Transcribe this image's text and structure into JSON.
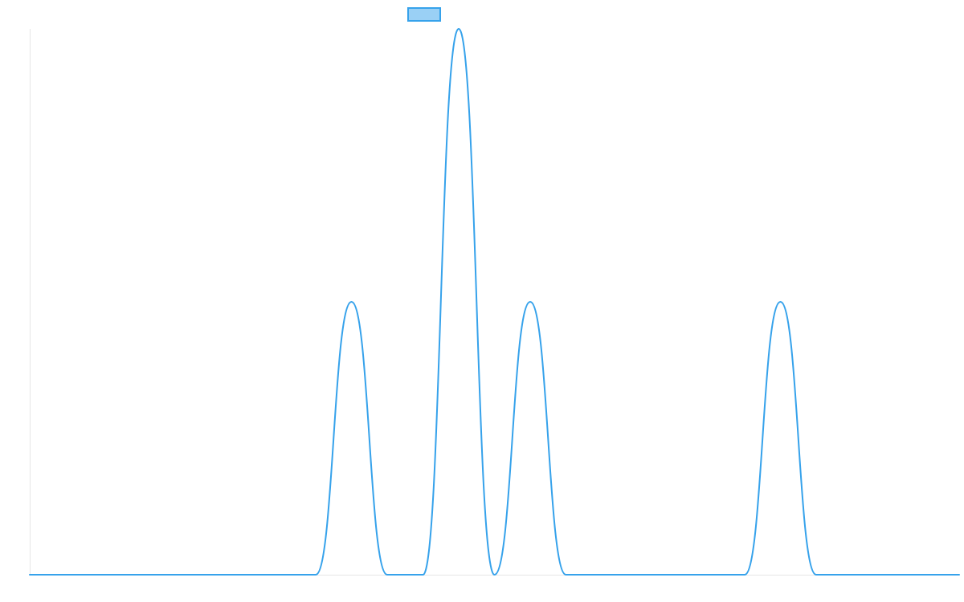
{
  "chart_data": {
    "type": "line",
    "title": "",
    "xlabel": "",
    "ylabel": "",
    "legend_position": "top-center",
    "grid": false,
    "x": [
      0,
      1,
      2,
      3,
      4,
      5,
      6,
      7,
      8,
      9,
      10,
      11,
      12,
      13,
      14,
      15,
      16,
      17,
      18,
      19,
      20,
      21,
      22,
      23,
      24,
      25,
      26
    ],
    "xlim": [
      0,
      26
    ],
    "ylim": [
      0,
      2
    ],
    "series": [
      {
        "values": [
          0,
          0,
          0,
          0,
          0,
          0,
          0,
          0,
          0,
          1,
          0,
          0,
          2,
          0,
          1,
          0,
          0,
          0,
          0,
          0,
          0,
          1,
          0,
          0,
          0,
          0,
          0
        ],
        "color": "#36a2eb",
        "fill": "#9ad0f5"
      }
    ]
  }
}
